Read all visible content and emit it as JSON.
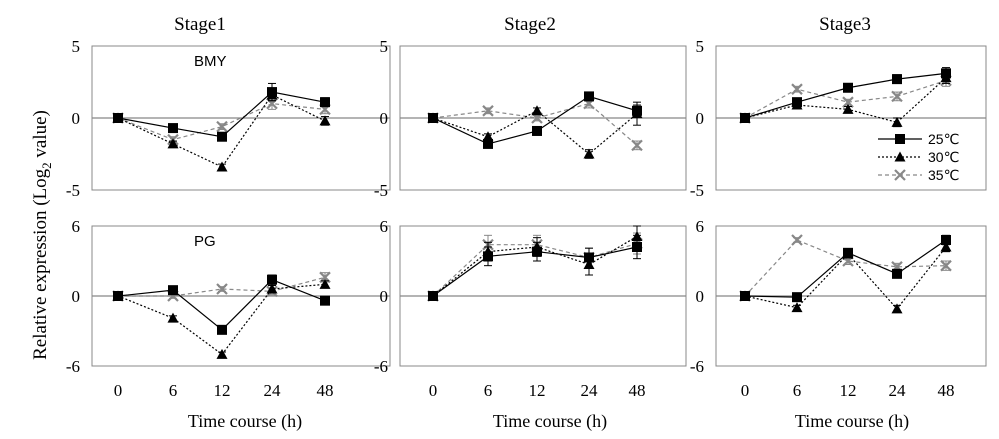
{
  "figure": {
    "ylabel": "Relative expression (Log",
    "ylabel_sub": "2",
    "ylabel_tail": " value)",
    "xlabel": "Time course (h)"
  },
  "legend": {
    "placement": "inside Stage3 BMY panel, lower-right",
    "entries": [
      {
        "label": "25℃",
        "marker": "square",
        "line": "solid",
        "color": "#000000"
      },
      {
        "label": "30℃",
        "marker": "triangle",
        "line": "dotted",
        "color": "#000000"
      },
      {
        "label": "35℃",
        "marker": "x",
        "line": "dashed",
        "color": "#888888"
      }
    ]
  },
  "chart_data": [
    {
      "type": "line",
      "stage": "Stage1",
      "gene": "BMY",
      "gene_label": "BMY",
      "x": [
        0,
        6,
        12,
        24,
        48
      ],
      "ylim": [
        -5,
        5
      ],
      "yticks": [
        -5,
        0,
        5
      ],
      "grid": false,
      "series": [
        {
          "name": "25℃",
          "values": [
            0,
            -0.7,
            -1.3,
            1.8,
            1.1
          ],
          "errors": [
            0.2,
            0.2,
            0.2,
            0.6,
            0.3
          ]
        },
        {
          "name": "30℃",
          "values": [
            0,
            -1.8,
            -3.4,
            1.6,
            -0.2
          ],
          "errors": [
            0.1,
            0.2,
            0.2,
            0.4,
            0.3
          ]
        },
        {
          "name": "35℃",
          "values": [
            0,
            -1.5,
            -0.6,
            1.0,
            0.6
          ],
          "errors": [
            0.1,
            0.2,
            0.2,
            0.4,
            0.3
          ]
        }
      ]
    },
    {
      "type": "line",
      "stage": "Stage2",
      "gene": "BMY",
      "gene_label": "",
      "x": [
        0,
        6,
        12,
        24,
        48
      ],
      "ylim": [
        -5,
        5
      ],
      "yticks": [
        -5,
        0,
        5
      ],
      "grid": false,
      "series": [
        {
          "name": "25℃",
          "values": [
            0,
            -1.8,
            -0.9,
            1.5,
            0.5
          ],
          "errors": [
            0.1,
            0.2,
            0.2,
            0.3,
            0.4
          ]
        },
        {
          "name": "30℃",
          "values": [
            0,
            -1.3,
            0.5,
            -2.5,
            0.3
          ],
          "errors": [
            0.1,
            0.2,
            0.2,
            0.3,
            0.8
          ]
        },
        {
          "name": "35℃",
          "values": [
            0,
            0.5,
            0.0,
            1.0,
            -1.9
          ],
          "errors": [
            0.1,
            0.2,
            0.2,
            0.3,
            0.3
          ]
        }
      ]
    },
    {
      "type": "line",
      "stage": "Stage3",
      "gene": "BMY",
      "gene_label": "",
      "x": [
        0,
        6,
        12,
        24,
        48
      ],
      "ylim": [
        -5,
        5
      ],
      "yticks": [
        -5,
        0,
        5
      ],
      "grid": false,
      "series": [
        {
          "name": "25℃",
          "values": [
            0,
            1.1,
            2.1,
            2.7,
            3.1
          ],
          "errors": [
            0.1,
            0.2,
            0.2,
            0.3,
            0.4
          ]
        },
        {
          "name": "30℃",
          "values": [
            0,
            0.9,
            0.6,
            -0.3,
            2.8
          ],
          "errors": [
            0.1,
            0.2,
            0.2,
            0.3,
            0.4
          ]
        },
        {
          "name": "35℃",
          "values": [
            0,
            2.0,
            1.1,
            1.5,
            2.6
          ],
          "errors": [
            0.1,
            0.2,
            0.2,
            0.3,
            0.4
          ]
        }
      ]
    },
    {
      "type": "line",
      "stage": "Stage1",
      "gene": "PG",
      "gene_label": "PG",
      "x": [
        0,
        6,
        12,
        24,
        48
      ],
      "ylim": [
        -6,
        6
      ],
      "yticks": [
        -6,
        0,
        6
      ],
      "grid": false,
      "series": [
        {
          "name": "25℃",
          "values": [
            0,
            0.5,
            -2.9,
            1.4,
            -0.4
          ],
          "errors": [
            0.1,
            0.2,
            0.2,
            0.4,
            0.3
          ]
        },
        {
          "name": "30℃",
          "values": [
            0,
            -1.9,
            -5.0,
            0.6,
            1.0
          ],
          "errors": [
            0.1,
            0.2,
            0.2,
            0.3,
            0.3
          ]
        },
        {
          "name": "35℃",
          "values": [
            0,
            0.0,
            0.6,
            0.4,
            1.6
          ],
          "errors": [
            0.1,
            0.2,
            0.2,
            0.3,
            0.4
          ]
        }
      ]
    },
    {
      "type": "line",
      "stage": "Stage2",
      "gene": "PG",
      "gene_label": "",
      "x": [
        0,
        6,
        12,
        24,
        48
      ],
      "ylim": [
        -6,
        6
      ],
      "yticks": [
        -6,
        0,
        6
      ],
      "grid": false,
      "series": [
        {
          "name": "25℃",
          "values": [
            0,
            3.4,
            3.8,
            3.3,
            4.2
          ],
          "errors": [
            0.1,
            0.8,
            0.8,
            0.8,
            1.0
          ]
        },
        {
          "name": "30℃",
          "values": [
            0,
            3.8,
            4.2,
            2.7,
            5.1
          ],
          "errors": [
            0.1,
            0.8,
            0.8,
            0.9,
            0.9
          ]
        },
        {
          "name": "35℃",
          "values": [
            0,
            4.4,
            4.4,
            3.3,
            4.5
          ],
          "errors": [
            0.1,
            0.8,
            0.8,
            0.8,
            0.9
          ]
        }
      ]
    },
    {
      "type": "line",
      "stage": "Stage3",
      "gene": "PG",
      "gene_label": "",
      "x": [
        0,
        6,
        12,
        24,
        48
      ],
      "ylim": [
        -6,
        6
      ],
      "yticks": [
        -6,
        0,
        6
      ],
      "grid": false,
      "series": [
        {
          "name": "25℃",
          "values": [
            0,
            -0.1,
            3.7,
            1.9,
            4.8
          ],
          "errors": [
            0.1,
            0.2,
            0.3,
            0.3,
            0.4
          ]
        },
        {
          "name": "30℃",
          "values": [
            0,
            -1.0,
            3.6,
            -1.1,
            4.2
          ],
          "errors": [
            0.1,
            0.2,
            0.3,
            0.3,
            0.4
          ]
        },
        {
          "name": "35℃",
          "values": [
            0,
            4.8,
            3.0,
            2.5,
            2.6
          ],
          "errors": [
            0.1,
            0.2,
            0.3,
            0.3,
            0.4
          ]
        }
      ]
    }
  ]
}
